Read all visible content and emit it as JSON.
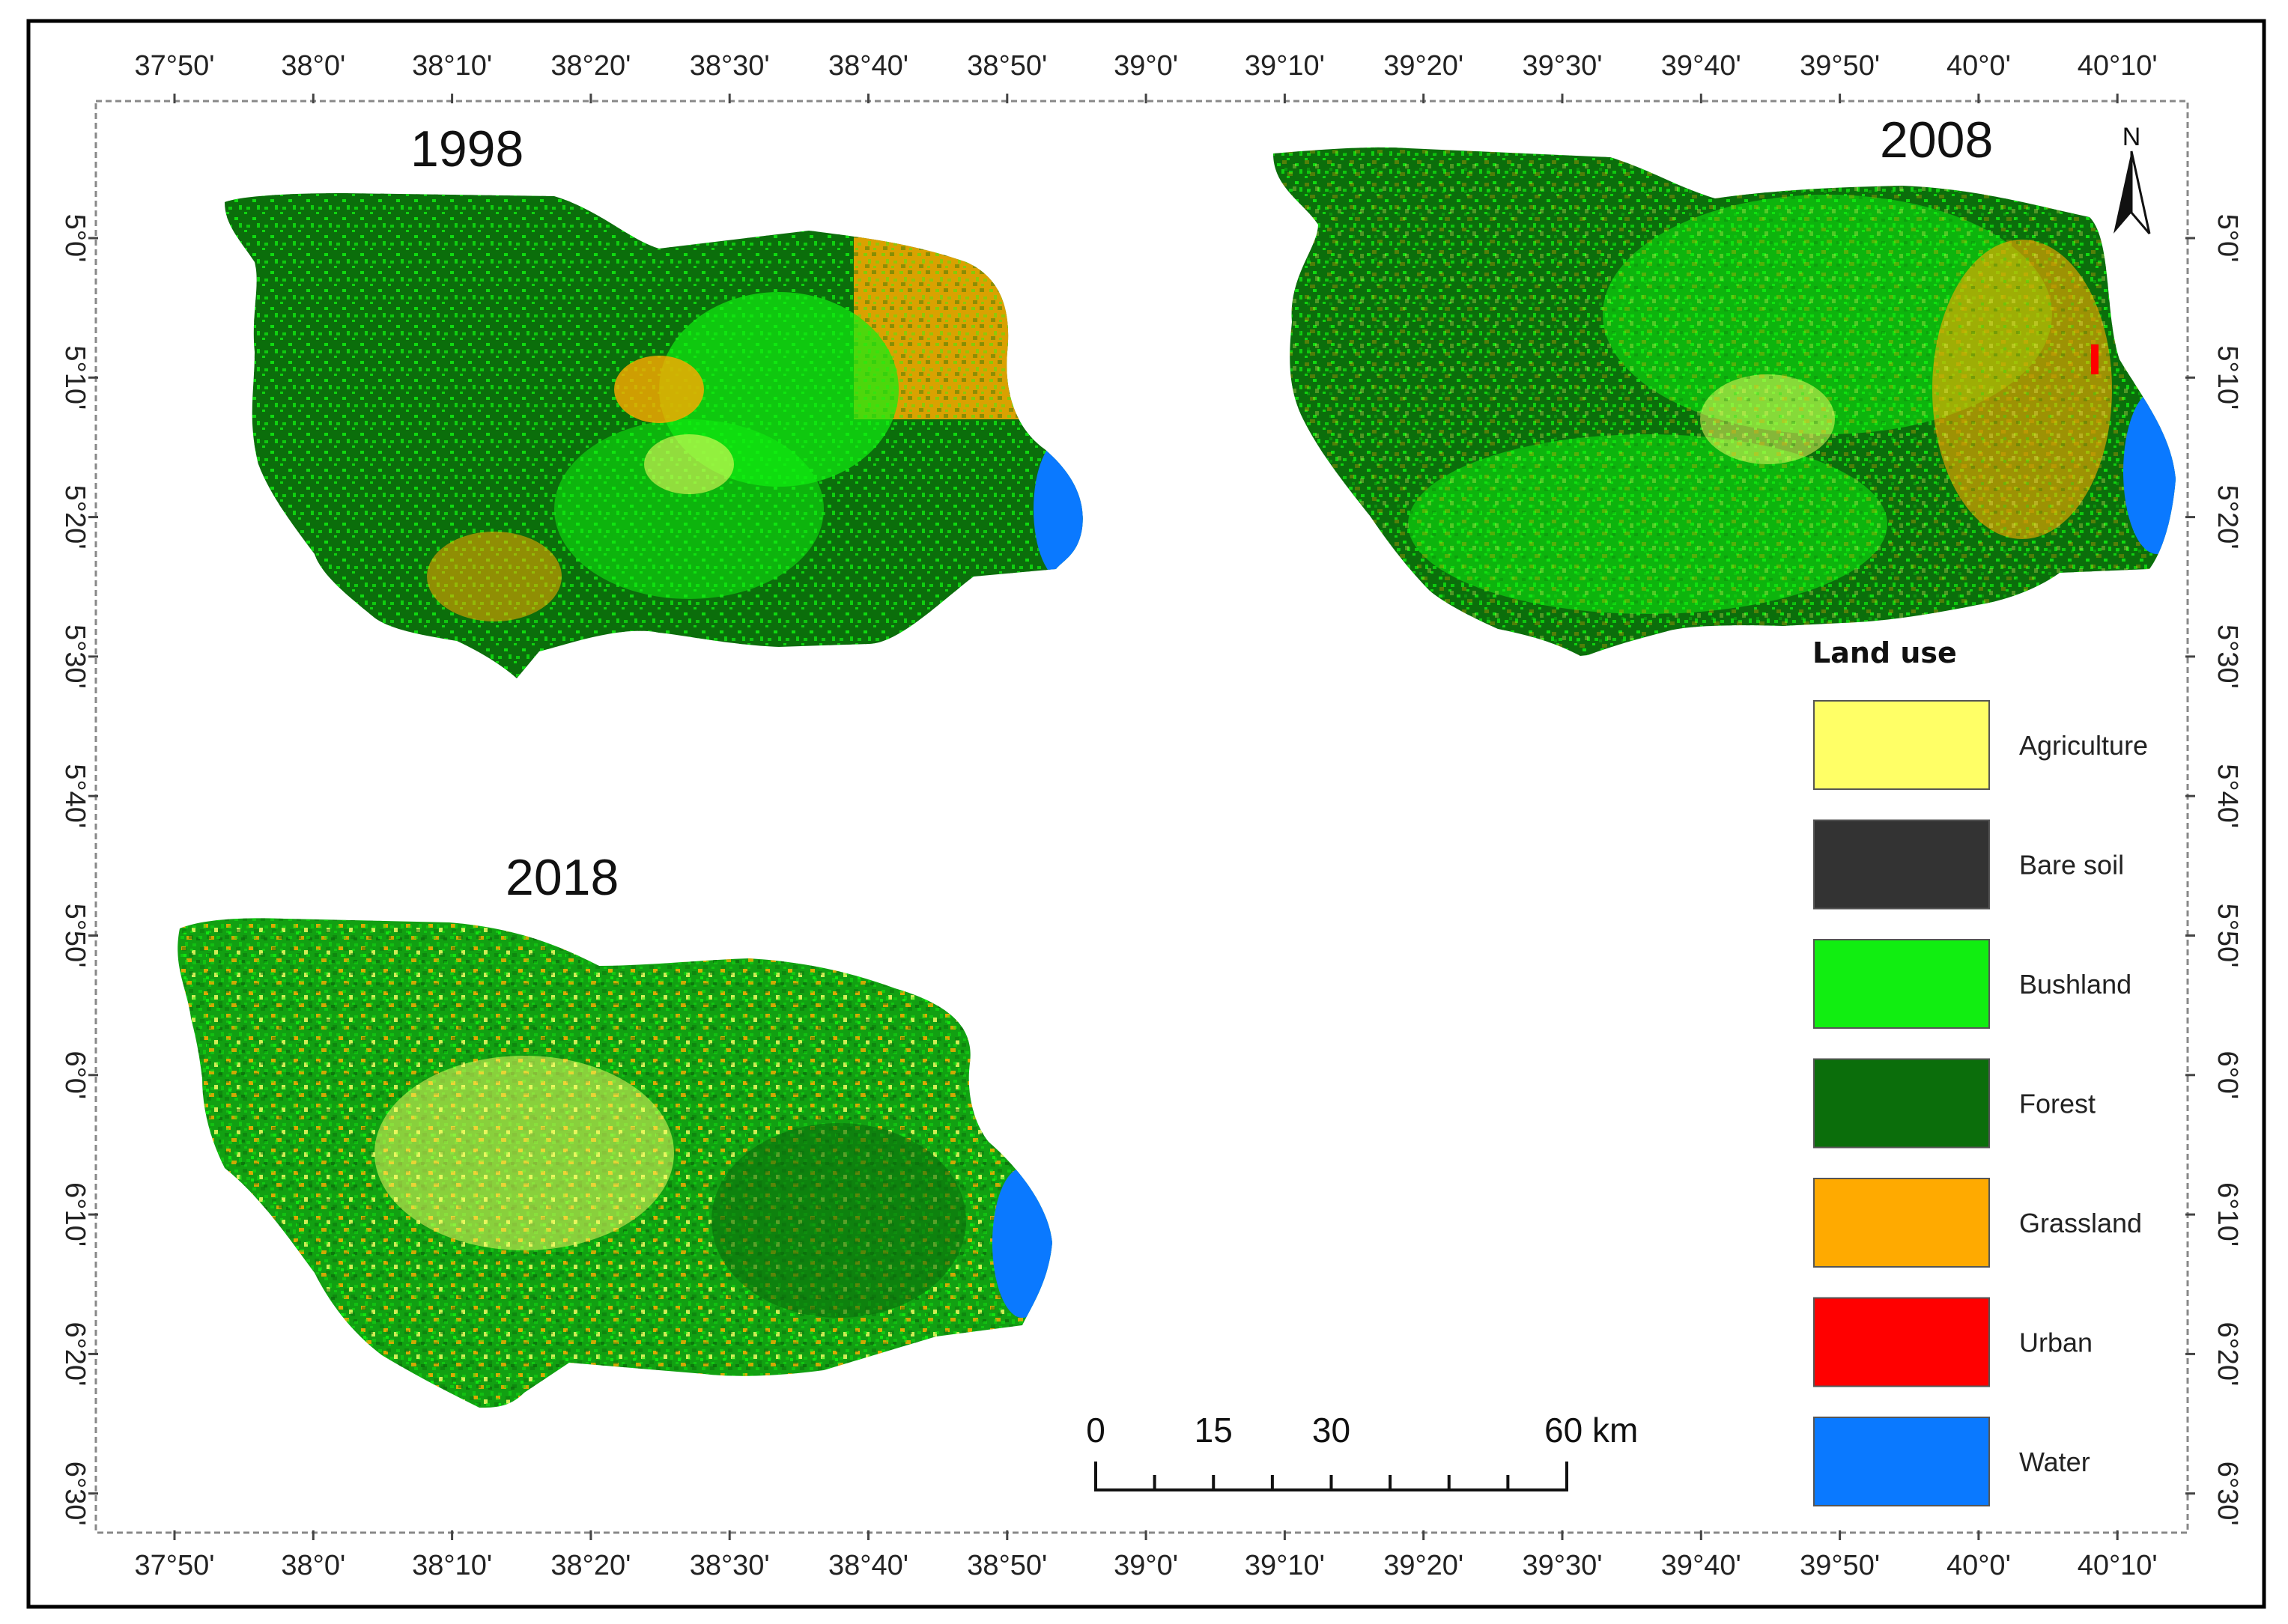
{
  "map": {
    "panels": [
      {
        "year": "1998",
        "base": "#0b6e0b",
        "mix": {
          "Forest": 0.55,
          "Bushland": 0.32,
          "Grassland": 0.08,
          "Agriculture": 0.05
        }
      },
      {
        "year": "2008",
        "base": "#0b6e0b",
        "mix": {
          "Forest": 0.5,
          "Bushland": 0.33,
          "Grassland": 0.1,
          "Agriculture": 0.07
        }
      },
      {
        "year": "2018",
        "base": "#12a012",
        "mix": {
          "Forest": 0.35,
          "Bushland": 0.3,
          "Grassland": 0.2,
          "Agriculture": 0.15
        }
      }
    ],
    "lon_ticks": [
      "37°50'",
      "38°0'",
      "38°10'",
      "38°20'",
      "38°30'",
      "38°40'",
      "38°50'",
      "39°0'",
      "39°10'",
      "39°20'",
      "39°30'",
      "39°40'",
      "39°50'",
      "40°0'",
      "40°10'"
    ],
    "lat_ticks": [
      "5°0'",
      "5°10'",
      "5°20'",
      "5°30'",
      "5°40'",
      "5°50'",
      "6°0'",
      "6°10'",
      "6°20'",
      "6°30'"
    ],
    "legend": {
      "title": "Land use",
      "items": [
        {
          "label": "Agriculture",
          "color": "#ffff66"
        },
        {
          "label": "Bare soil",
          "color": "#333333"
        },
        {
          "label": "Bushland",
          "color": "#11ee11"
        },
        {
          "label": "Forest",
          "color": "#0b6e0b"
        },
        {
          "label": "Grassland",
          "color": "#ffaa00"
        },
        {
          "label": "Urban",
          "color": "#ff0000"
        },
        {
          "label": "Water",
          "color": "#0a79ff"
        }
      ]
    },
    "scale_bar": {
      "labels": [
        "0",
        "15",
        "30",
        "60 km"
      ]
    },
    "north_arrow": {
      "label": "N"
    }
  }
}
